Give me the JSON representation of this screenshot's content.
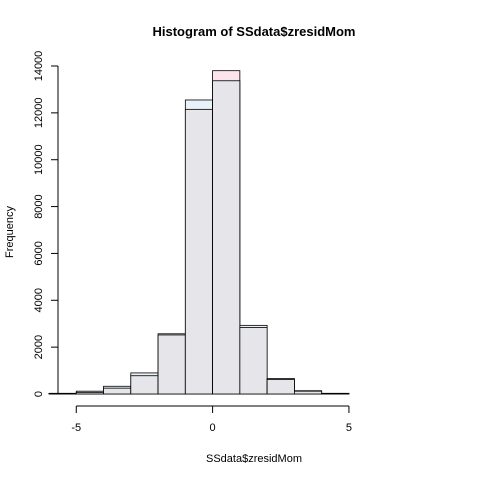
{
  "chart_data": {
    "type": "bar",
    "title": "Histogram of SSdata$zresidMom",
    "xlabel": "SSdata$zresidMom",
    "ylabel": "Frequency",
    "xlim": [
      -6,
      9
    ],
    "ylim": [
      0,
      14000
    ],
    "x_ticks": [
      -5,
      0,
      5
    ],
    "y_ticks": [
      0,
      2000,
      4000,
      6000,
      8000,
      10000,
      12000,
      14000
    ],
    "bin_edges": [
      -6,
      -5,
      -4,
      -3,
      -2,
      -1,
      0,
      1,
      2,
      3,
      4,
      5
    ],
    "series": [
      {
        "color": "#e8f2f8",
        "values": [
          30,
          120,
          330,
          900,
          2570,
          12550,
          13370,
          2930,
          660,
          140,
          30
        ]
      },
      {
        "color": "#fbe4ec",
        "values": [
          20,
          70,
          250,
          780,
          2520,
          12150,
          13800,
          2840,
          620,
          120,
          20
        ]
      }
    ],
    "overlap_color": "#e5e5ea",
    "grid": false
  }
}
